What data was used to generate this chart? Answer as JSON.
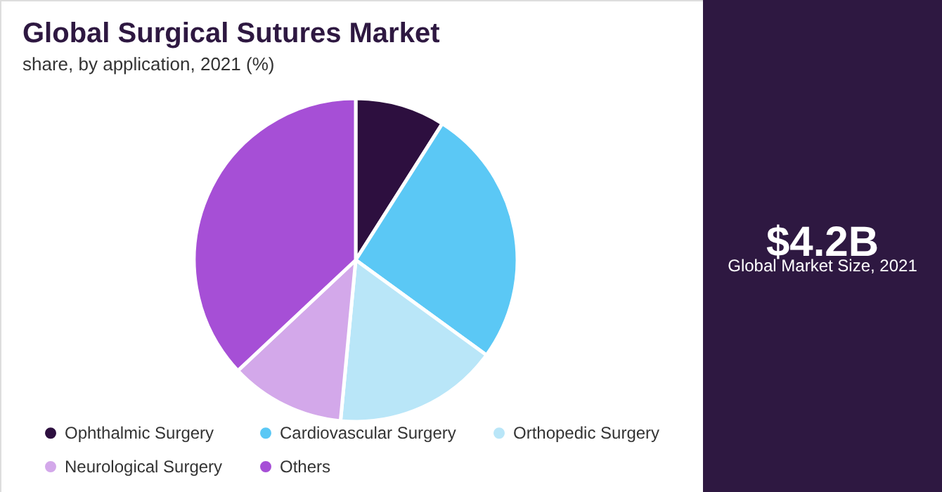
{
  "chart_data": {
    "type": "pie",
    "title": "Global Surgical Sutures Market",
    "subtitle": "share, by application, 2021 (%)",
    "categories": [
      "Ophthalmic Surgery",
      "Cardiovascular Surgery",
      "Orthopedic Surgery",
      "Neurological Surgery",
      "Others"
    ],
    "values": [
      9,
      26,
      16.5,
      11.5,
      37
    ],
    "colors": [
      "#2d0f3f",
      "#5bc8f5",
      "#b9e6f8",
      "#d3a8ea",
      "#a64fd6"
    ],
    "legend": "bottom",
    "annotations": [
      "$4.2B",
      "Global Market Size, 2021"
    ]
  }
}
